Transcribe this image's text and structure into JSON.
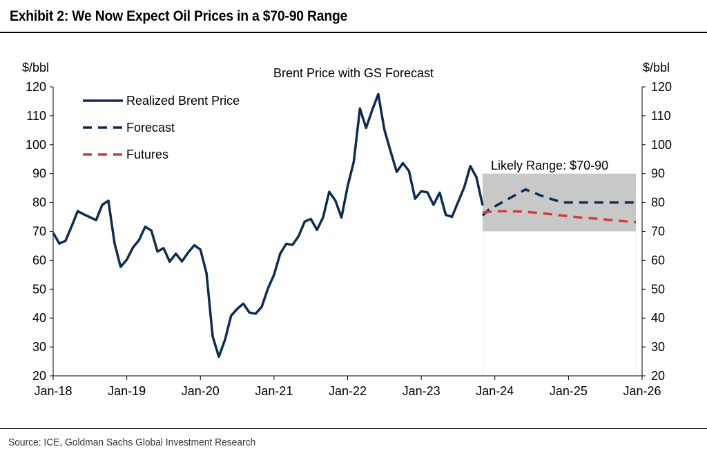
{
  "header": {
    "title": "Exhibit 2: We Now Expect Oil Prices in a $70-90 Range"
  },
  "footer": {
    "source": "Source: ICE, Goldman Sachs Global Investment Research"
  },
  "chart_data": {
    "type": "line",
    "title": "Brent Price with GS Forecast",
    "ylabel_left": "$/bbl",
    "ylabel_right": "$/bbl",
    "ylim": [
      20,
      120
    ],
    "yticks": [
      20,
      30,
      40,
      50,
      60,
      70,
      80,
      90,
      100,
      110,
      120
    ],
    "x_ticks": [
      "Jan-18",
      "Jan-19",
      "Jan-20",
      "Jan-21",
      "Jan-22",
      "Jan-23",
      "Jan-24",
      "Jan-25",
      "Jan-26"
    ],
    "x_start": "2018-01",
    "legend_position": "top-left",
    "range_band": {
      "label": "Likely Range: $70-90",
      "ymin": 70,
      "ymax": 90,
      "x_from": "2023-11",
      "x_to": "2025-12",
      "color": "#c8c8c8"
    },
    "series": [
      {
        "name": "Realized Brent Price",
        "style": "solid",
        "color": "#0d2b50",
        "x": [
          "2018-01",
          "2018-02",
          "2018-03",
          "2018-04",
          "2018-05",
          "2018-06",
          "2018-07",
          "2018-08",
          "2018-09",
          "2018-10",
          "2018-11",
          "2018-12",
          "2019-01",
          "2019-02",
          "2019-03",
          "2019-04",
          "2019-05",
          "2019-06",
          "2019-07",
          "2019-08",
          "2019-09",
          "2019-10",
          "2019-11",
          "2019-12",
          "2020-01",
          "2020-02",
          "2020-03",
          "2020-04",
          "2020-05",
          "2020-06",
          "2020-07",
          "2020-08",
          "2020-09",
          "2020-10",
          "2020-11",
          "2020-12",
          "2021-01",
          "2021-02",
          "2021-03",
          "2021-04",
          "2021-05",
          "2021-06",
          "2021-07",
          "2021-08",
          "2021-09",
          "2021-10",
          "2021-11",
          "2021-12",
          "2022-01",
          "2022-02",
          "2022-03",
          "2022-04",
          "2022-05",
          "2022-06",
          "2022-07",
          "2022-08",
          "2022-09",
          "2022-10",
          "2022-11",
          "2022-12",
          "2023-01",
          "2023-02",
          "2023-03",
          "2023-04",
          "2023-05",
          "2023-06",
          "2023-07",
          "2023-08",
          "2023-09",
          "2023-10",
          "2023-11"
        ],
        "values": [
          69.5,
          65.8,
          66.7,
          71.7,
          77.0,
          75.9,
          74.9,
          73.9,
          79.2,
          80.6,
          65.9,
          57.7,
          60.2,
          64.4,
          67.0,
          71.6,
          70.3,
          63.0,
          64.2,
          59.5,
          62.3,
          59.6,
          62.7,
          65.2,
          63.7,
          55.5,
          33.7,
          26.6,
          32.4,
          40.8,
          43.2,
          45.0,
          41.9,
          41.5,
          43.9,
          50.2,
          55.0,
          62.3,
          65.7,
          65.3,
          68.3,
          73.4,
          74.3,
          70.5,
          74.9,
          83.7,
          80.7,
          74.8,
          85.6,
          94.1,
          112.5,
          105.8,
          111.9,
          117.5,
          105.1,
          97.7,
          90.6,
          93.6,
          90.9,
          81.3,
          83.9,
          83.5,
          79.2,
          83.4,
          75.7,
          75.0,
          80.1,
          85.2,
          92.6,
          88.7,
          79.0
        ]
      },
      {
        "name": "Forecast",
        "style": "dashed",
        "color": "#0d2b50",
        "x": [
          "2023-11",
          "2023-12",
          "2024-03",
          "2024-06",
          "2024-09",
          "2024-12",
          "2025-03",
          "2025-06",
          "2025-09",
          "2025-12"
        ],
        "values": [
          75.5,
          77.5,
          81.0,
          84.5,
          82.0,
          80.0,
          80.0,
          80.0,
          80.0,
          80.0
        ]
      },
      {
        "name": "Futures",
        "style": "dashed",
        "color": "#d13b3b",
        "x": [
          "2023-11",
          "2024-01",
          "2024-03",
          "2024-06",
          "2024-09",
          "2024-12",
          "2025-03",
          "2025-06",
          "2025-09",
          "2025-12"
        ],
        "values": [
          76.5,
          77.0,
          77.0,
          76.8,
          76.2,
          75.5,
          74.8,
          74.3,
          73.7,
          73.2
        ]
      }
    ]
  }
}
